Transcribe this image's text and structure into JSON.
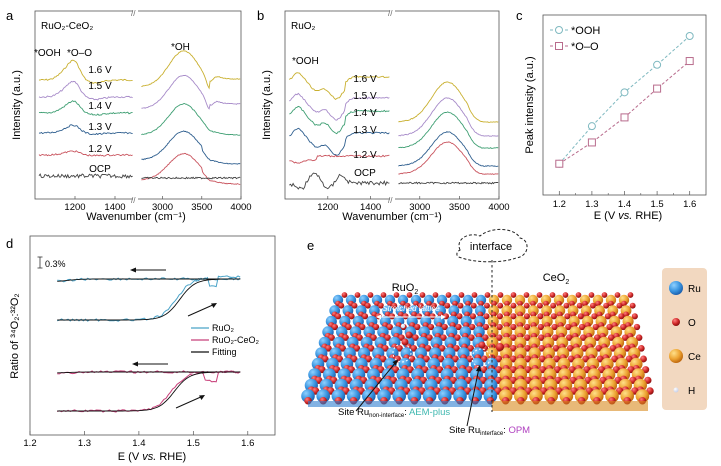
{
  "panels": {
    "a": {
      "letter": "a",
      "sample": "RuO₂-CeO₂",
      "peaks": [
        "*OOH",
        "*O–O",
        "*OH"
      ]
    },
    "b": {
      "letter": "b",
      "sample": "RuO₂",
      "peaks": [
        "*OOH"
      ]
    },
    "c": {
      "letter": "c"
    },
    "d": {
      "letter": "d",
      "scale_bar": "0.3%"
    },
    "e": {
      "letter": "e"
    }
  },
  "chart_data": [
    {
      "id": "a",
      "type": "line",
      "title": "RuO₂-CeO₂",
      "xlabel": "Wavenumber (cm⁻¹)",
      "ylabel": "Intensity (a.u.)",
      "x_segments": [
        {
          "range": [
            1000,
            1500
          ],
          "ticks": [
            1200,
            1400
          ]
        },
        {
          "range": [
            2700,
            4000
          ],
          "ticks": [
            3000,
            3500,
            4000
          ]
        }
      ],
      "axis_break": "//",
      "annotations": [
        "*OOH",
        "*O–O",
        "*OH"
      ],
      "series": [
        {
          "name": "1.6 V",
          "color": "#c9b030"
        },
        {
          "name": "1.5 V",
          "color": "#a78bc9"
        },
        {
          "name": "1.4 V",
          "color": "#3f9f73"
        },
        {
          "name": "1.3 V",
          "color": "#2f5f8f"
        },
        {
          "name": "1.2 V",
          "color": "#c9545e"
        },
        {
          "name": "OCP",
          "color": "#444444"
        }
      ]
    },
    {
      "id": "b",
      "type": "line",
      "title": "RuO₂",
      "xlabel": "Wavenumber (cm⁻¹)",
      "ylabel": "Intensity (a.u.)",
      "x_segments": [
        {
          "range": [
            1000,
            1500
          ],
          "ticks": [
            1200,
            1400
          ]
        },
        {
          "range": [
            2700,
            4000
          ],
          "ticks": [
            3000,
            3500,
            4000
          ]
        }
      ],
      "axis_break": "//",
      "annotations": [
        "*OOH"
      ],
      "series": [
        {
          "name": "1.6 V",
          "color": "#c9b030"
        },
        {
          "name": "1.5 V",
          "color": "#a78bc9"
        },
        {
          "name": "1.4 V",
          "color": "#3f9f73"
        },
        {
          "name": "1.3 V",
          "color": "#2f5f8f"
        },
        {
          "name": "1.2 V",
          "color": "#c9545e"
        },
        {
          "name": "OCP",
          "color": "#444444"
        }
      ]
    },
    {
      "id": "c",
      "type": "scatter",
      "xlabel": "E (V vs. RHE)",
      "ylabel": "Peak intensity (a.u.)",
      "x": [
        1.2,
        1.3,
        1.4,
        1.5,
        1.6
      ],
      "xlim": [
        1.15,
        1.65
      ],
      "xticks": [
        "1.2",
        "1.3",
        "1.4",
        "1.5",
        "1.6"
      ],
      "ylim": [
        0,
        1
      ],
      "legend": "top-left",
      "series": [
        {
          "name": "*OOH",
          "marker": "circle",
          "color": "#7fb9c0",
          "values": [
            0.09,
            0.39,
            0.66,
            0.88,
            1.11
          ]
        },
        {
          "name": "*O–O",
          "marker": "square",
          "color": "#b86b8c",
          "values": [
            0.09,
            0.26,
            0.46,
            0.69,
            0.91
          ]
        }
      ]
    },
    {
      "id": "d",
      "type": "line",
      "xlabel": "E (V vs. RHE)",
      "ylabel": "Ratio of ³⁴O₂:³²O₂",
      "xlim": [
        1.2,
        1.65
      ],
      "xticks": [
        "1.2",
        "1.3",
        "1.4",
        "1.5",
        "1.6"
      ],
      "scale_bar": "0.3%",
      "legend": "center-right",
      "series": [
        {
          "name": "RuO₂",
          "color": "#4aa3c8"
        },
        {
          "name": "RuO₂-CeO₂",
          "color": "#c8407a"
        },
        {
          "name": "Fitting",
          "color": "#111111"
        }
      ],
      "curves": {
        "RuO2_forward": {
          "x_start": 1.25,
          "x_end": 1.59,
          "onset": 1.47,
          "rise_to": 1.0
        },
        "RuO2_reverse": {
          "x_start": 1.59,
          "x_end": 1.25
        },
        "RuO2CeO2_forward": {
          "x_start": 1.25,
          "x_end": 1.59,
          "onset": 1.45
        },
        "RuO2CeO2_reverse": {
          "x_start": 1.59,
          "x_end": 1.25
        }
      }
    }
  ],
  "schematic": {
    "labels": {
      "interface": "interface",
      "ruo2": "RuO₂",
      "ceo2": "CeO₂",
      "stretched": "Stretched lattice",
      "site1_prefix": "Site Ru",
      "site1_sub": "non-interface",
      "site1_mech": "AEM-plus",
      "site2_prefix": "Site Ru",
      "site2_sub": "interface",
      "site2_mech": "OPM"
    },
    "legend": [
      {
        "label": "Ru",
        "color": "#3a95e0"
      },
      {
        "label": "O",
        "color": "#d03030"
      },
      {
        "label": "Ce",
        "color": "#e8a030"
      },
      {
        "label": "H",
        "color": "#e8ecf8"
      }
    ],
    "colors": {
      "aem": "#3fb8b0",
      "opm": "#b040c0",
      "legend_bg": "#f2d8c0"
    }
  }
}
